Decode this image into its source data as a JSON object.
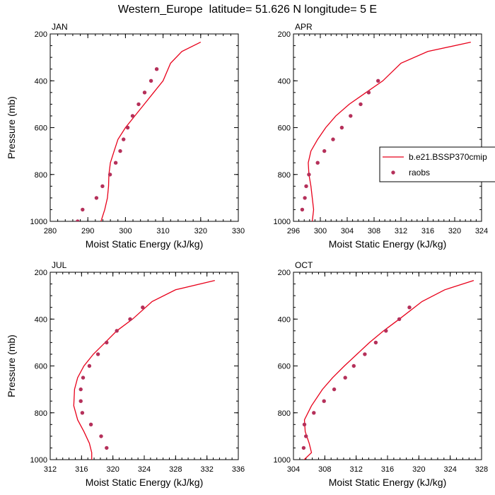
{
  "page": {
    "title": "Western_Europe  latitude= 51.626 N longitude= 5 E"
  },
  "legend": {
    "entries": [
      {
        "label": "b.e21.BSSP370cmip",
        "kind": "line",
        "color": "#e8001a"
      },
      {
        "label": "raobs",
        "kind": "marker",
        "color": "#b5305a"
      }
    ],
    "placement": "right edge of APR panel"
  },
  "colors": {
    "model_line": "#e8001a",
    "obs_marker": "#b5305a"
  },
  "chart_data": [
    {
      "type": "line",
      "panel": "JAN",
      "xlabel": "Moist Static Energy (kJ/kg)",
      "ylabel": "Pressure (mb)",
      "xlim": [
        280,
        330
      ],
      "ylim": [
        1000,
        200
      ],
      "xticks": [
        280,
        290,
        300,
        310,
        320,
        330
      ],
      "yticks": [
        200,
        400,
        600,
        800,
        1000
      ],
      "series": [
        {
          "name": "b.e21.BSSP370cmip",
          "style": "line",
          "x": [
            320.0,
            315.0,
            312.0,
            310.0,
            307.5,
            305.0,
            302.5,
            300.0,
            298.0,
            297.0,
            296.0,
            295.6,
            295.5,
            295.2,
            294.5,
            293.5
          ],
          "y": [
            235,
            275,
            325,
            400,
            450,
            500,
            550,
            600,
            650,
            700,
            750,
            800,
            850,
            900,
            950,
            1000
          ]
        },
        {
          "name": "raobs",
          "style": "markers",
          "x": [
            308.3,
            306.8,
            305.1,
            303.5,
            301.9,
            300.6,
            299.5,
            298.6,
            297.4,
            295.9,
            293.9,
            292.3,
            288.6,
            287.3
          ],
          "y": [
            350,
            400,
            450,
            500,
            550,
            600,
            650,
            700,
            750,
            800,
            850,
            900,
            950,
            1000
          ]
        }
      ]
    },
    {
      "type": "line",
      "panel": "APR",
      "xlabel": "Moist Static Energy (kJ/kg)",
      "ylabel": "",
      "xlim": [
        296,
        324
      ],
      "ylim": [
        1000,
        200
      ],
      "xticks": [
        296,
        300,
        304,
        308,
        312,
        316,
        320,
        324
      ],
      "yticks": [
        200,
        400,
        600,
        800,
        1000
      ],
      "series": [
        {
          "name": "b.e21.BSSP370cmip",
          "style": "line",
          "x": [
            322.4,
            316.0,
            312.0,
            309.3,
            306.8,
            304.3,
            302.3,
            300.8,
            299.6,
            298.6,
            298.2,
            298.3,
            298.6,
            298.8,
            299.0,
            298.8
          ],
          "y": [
            235,
            275,
            325,
            400,
            450,
            500,
            550,
            600,
            650,
            700,
            750,
            800,
            850,
            900,
            950,
            1000
          ]
        },
        {
          "name": "raobs",
          "style": "markers",
          "x": [
            308.6,
            307.2,
            306.0,
            304.5,
            303.2,
            301.9,
            300.6,
            299.6,
            298.3,
            297.9,
            297.7,
            297.3
          ],
          "y": [
            400,
            450,
            500,
            550,
            600,
            650,
            700,
            750,
            800,
            850,
            900,
            950
          ]
        }
      ]
    },
    {
      "type": "line",
      "panel": "JUL",
      "xlabel": "Moist Static Energy (kJ/kg)",
      "ylabel": "Pressure (mb)",
      "xlim": [
        312,
        336
      ],
      "ylim": [
        1000,
        200
      ],
      "xticks": [
        312,
        316,
        320,
        324,
        328,
        332,
        336
      ],
      "yticks": [
        200,
        400,
        600,
        800,
        1000
      ],
      "series": [
        {
          "name": "b.e21.BSSP370cmip",
          "style": "line",
          "x": [
            333.0,
            328.0,
            325.0,
            322.5,
            320.5,
            319.0,
            317.5,
            316.3,
            315.5,
            315.1,
            315.0,
            315.5,
            316.3,
            317.0,
            317.3,
            317.3
          ],
          "y": [
            235,
            275,
            325,
            400,
            450,
            500,
            550,
            600,
            650,
            700,
            770,
            830,
            880,
            930,
            970,
            1005
          ]
        },
        {
          "name": "raobs",
          "style": "markers",
          "x": [
            323.8,
            322.2,
            320.5,
            319.2,
            318.1,
            317.0,
            316.2,
            315.9,
            315.9,
            316.1,
            317.2,
            318.5,
            319.2
          ],
          "y": [
            350,
            400,
            450,
            500,
            550,
            600,
            650,
            700,
            750,
            800,
            850,
            900,
            950
          ]
        }
      ]
    },
    {
      "type": "line",
      "panel": "OCT",
      "xlabel": "Moist Static Energy (kJ/kg)",
      "ylabel": "",
      "xlim": [
        304,
        328
      ],
      "ylim": [
        1000,
        200
      ],
      "xticks": [
        304,
        308,
        312,
        316,
        320,
        324,
        328
      ],
      "yticks": [
        200,
        400,
        600,
        800,
        1000
      ],
      "series": [
        {
          "name": "b.e21.BSSP370cmip",
          "style": "line",
          "x": [
            327.0,
            323.3,
            320.4,
            317.5,
            315.5,
            313.7,
            312.1,
            310.5,
            309.0,
            307.7,
            306.3,
            305.4,
            305.5,
            306.0,
            306.3,
            305.2
          ],
          "y": [
            235,
            275,
            325,
            400,
            450,
            500,
            550,
            600,
            650,
            700,
            770,
            830,
            880,
            930,
            970,
            1005
          ]
        },
        {
          "name": "raobs",
          "style": "markers",
          "x": [
            318.8,
            317.5,
            315.8,
            314.5,
            313.1,
            311.7,
            310.6,
            309.2,
            307.9,
            306.6,
            305.4,
            305.6,
            305.3
          ],
          "y": [
            350,
            400,
            450,
            500,
            550,
            600,
            650,
            700,
            750,
            800,
            850,
            900,
            950
          ]
        }
      ]
    }
  ]
}
